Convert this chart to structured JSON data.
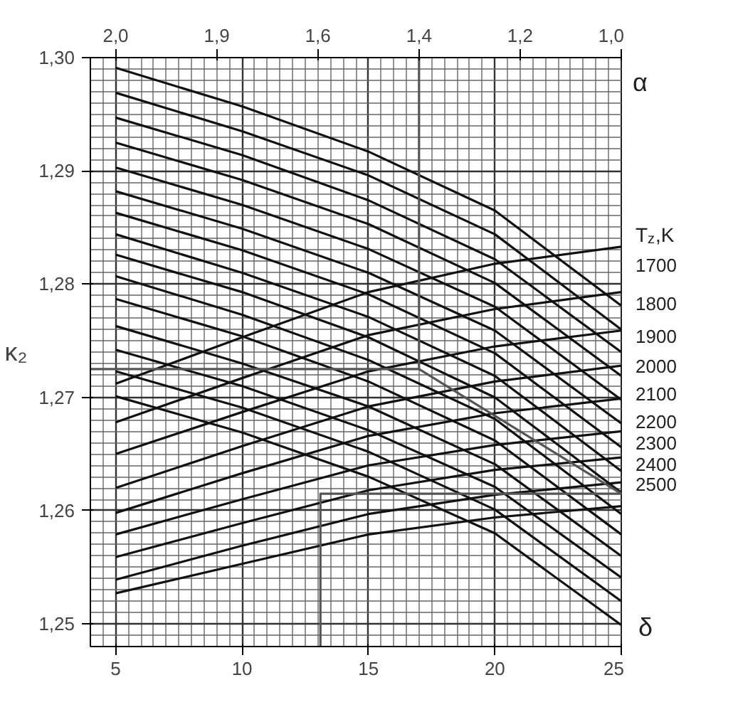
{
  "chart_data": {
    "type": "line",
    "xlabel": "δ",
    "ylabel": "κ₂",
    "x2label": "α",
    "legend_title": "T$_{z}$,K",
    "xlim": [
      4,
      25
    ],
    "ylim": [
      1.248,
      1.3
    ],
    "xticks": [
      5,
      10,
      15,
      20,
      25
    ],
    "yticks": [
      {
        "value": 1.25,
        "label": "1,25"
      },
      {
        "value": 1.26,
        "label": "1,26"
      },
      {
        "value": 1.27,
        "label": "1,27"
      },
      {
        "value": 1.28,
        "label": "1,28"
      },
      {
        "value": 1.29,
        "label": "1,29"
      },
      {
        "value": 1.3,
        "label": "1,30"
      }
    ],
    "annotations": [
      "2,0",
      "1,9",
      "1,6",
      "1,4",
      "1,2",
      "1,0"
    ],
    "grid": true,
    "x": [
      5,
      10,
      15,
      20,
      25
    ],
    "series": [
      {
        "color": "#111111",
        "values": [
          1.2991,
          1.2957,
          1.2917,
          1.2865,
          1.2781
        ]
      },
      {
        "color": "#111111",
        "values": [
          1.2969,
          1.2935,
          1.2896,
          1.2844,
          1.276
        ]
      },
      {
        "color": "#111111",
        "values": [
          1.2947,
          1.2914,
          1.2874,
          1.2822,
          1.274
        ]
      },
      {
        "color": "#111111",
        "values": [
          1.2925,
          1.2892,
          1.2853,
          1.2801,
          1.2719
        ]
      },
      {
        "color": "#111111",
        "values": [
          1.2903,
          1.287,
          1.2831,
          1.278,
          1.2698
        ]
      },
      {
        "color": "#111111",
        "values": [
          1.2882,
          1.2849,
          1.281,
          1.2759,
          1.2677
        ]
      },
      {
        "color": "#111111",
        "values": [
          1.2863,
          1.283,
          1.2791,
          1.2739,
          1.2656
        ]
      },
      {
        "color": "#111111",
        "values": [
          1.2844,
          1.281,
          1.2771,
          1.2719,
          1.2635
        ]
      },
      {
        "color": "#111111",
        "values": [
          1.2826,
          1.2793,
          1.2753,
          1.27,
          1.2616
        ]
      },
      {
        "color": "#111111",
        "values": [
          1.2807,
          1.2773,
          1.2733,
          1.2681,
          1.2597
        ]
      },
      {
        "color": "#111111",
        "values": [
          1.2787,
          1.2754,
          1.2714,
          1.2662,
          1.2579
        ]
      },
      {
        "color": "#111111",
        "values": [
          1.2763,
          1.273,
          1.2692,
          1.2641,
          1.256
        ]
      },
      {
        "color": "#111111",
        "values": [
          1.2742,
          1.271,
          1.2671,
          1.2621,
          1.2541
        ]
      },
      {
        "color": "#111111",
        "values": [
          1.2723,
          1.2691,
          1.2652,
          1.2601,
          1.252
        ]
      },
      {
        "color": "#111111",
        "values": [
          1.2701,
          1.2669,
          1.263,
          1.258,
          1.2499
        ]
      },
      {
        "name": "1700",
        "color": "#111111",
        "values": [
          1.2712,
          1.2753,
          1.2793,
          1.2818,
          1.2833
        ]
      },
      {
        "name": "1800",
        "color": "#111111",
        "values": [
          1.2678,
          1.2717,
          1.2755,
          1.2778,
          1.2793
        ]
      },
      {
        "name": "1900",
        "color": "#111111",
        "values": [
          1.265,
          1.2687,
          1.2723,
          1.2745,
          1.2759
        ]
      },
      {
        "name": "2000",
        "color": "#111111",
        "values": [
          1.262,
          1.2657,
          1.2692,
          1.2714,
          1.2728
        ]
      },
      {
        "name": "2100",
        "color": "#111111",
        "values": [
          1.2598,
          1.2633,
          1.2666,
          1.2686,
          1.2699
        ]
      },
      {
        "name": "2200",
        "color": "#111111",
        "values": [
          1.2579,
          1.261,
          1.264,
          1.2658,
          1.267
        ]
      },
      {
        "name": "2300",
        "color": "#111111",
        "values": [
          1.2559,
          1.2589,
          1.2618,
          1.2636,
          1.2647
        ]
      },
      {
        "name": "2400",
        "color": "#111111",
        "values": [
          1.2539,
          1.2569,
          1.2597,
          1.2614,
          1.2625
        ]
      },
      {
        "name": "2500",
        "color": "#111111",
        "values": [
          1.2527,
          1.2553,
          1.2579,
          1.2594,
          1.2604
        ]
      },
      {
        "color": "#555555",
        "x": [
          13.1,
          13.1,
          25
        ],
        "values": [
          1.248,
          1.2615,
          1.2615
        ]
      },
      {
        "color": "#555555",
        "x": [
          17,
          17,
          25
        ],
        "values": [
          1.3,
          1.2725,
          1.2615
        ]
      },
      {
        "color": "#555555",
        "x": [
          4,
          17
        ],
        "values": [
          1.2725,
          1.2725
        ]
      }
    ]
  }
}
